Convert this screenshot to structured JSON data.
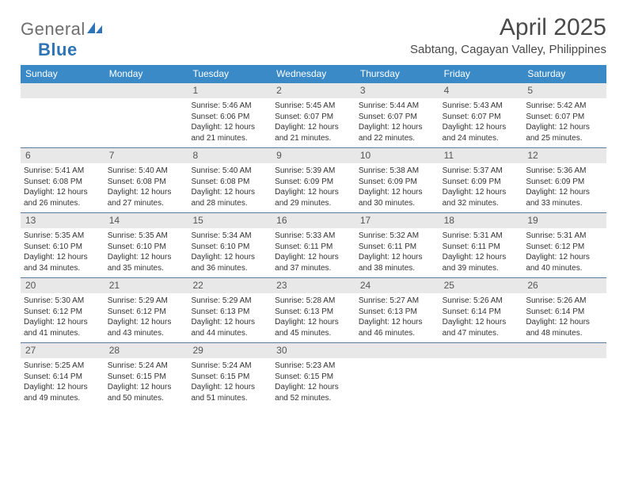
{
  "logo": {
    "word1": "General",
    "word2": "Blue"
  },
  "title": "April 2025",
  "subtitle": "Sabtang, Cagayan Valley, Philippines",
  "header_bg": "#3a8ac8",
  "daynum_bg": "#e8e8e8",
  "row_border": "#5a7a9a",
  "text_color": "#333333",
  "dayNames": [
    "Sunday",
    "Monday",
    "Tuesday",
    "Wednesday",
    "Thursday",
    "Friday",
    "Saturday"
  ],
  "weeks": [
    [
      {
        "n": "",
        "sunrise": "",
        "sunset": "",
        "daylight": ""
      },
      {
        "n": "",
        "sunrise": "",
        "sunset": "",
        "daylight": ""
      },
      {
        "n": "1",
        "sunrise": "Sunrise: 5:46 AM",
        "sunset": "Sunset: 6:06 PM",
        "daylight": "Daylight: 12 hours and 21 minutes."
      },
      {
        "n": "2",
        "sunrise": "Sunrise: 5:45 AM",
        "sunset": "Sunset: 6:07 PM",
        "daylight": "Daylight: 12 hours and 21 minutes."
      },
      {
        "n": "3",
        "sunrise": "Sunrise: 5:44 AM",
        "sunset": "Sunset: 6:07 PM",
        "daylight": "Daylight: 12 hours and 22 minutes."
      },
      {
        "n": "4",
        "sunrise": "Sunrise: 5:43 AM",
        "sunset": "Sunset: 6:07 PM",
        "daylight": "Daylight: 12 hours and 24 minutes."
      },
      {
        "n": "5",
        "sunrise": "Sunrise: 5:42 AM",
        "sunset": "Sunset: 6:07 PM",
        "daylight": "Daylight: 12 hours and 25 minutes."
      }
    ],
    [
      {
        "n": "6",
        "sunrise": "Sunrise: 5:41 AM",
        "sunset": "Sunset: 6:08 PM",
        "daylight": "Daylight: 12 hours and 26 minutes."
      },
      {
        "n": "7",
        "sunrise": "Sunrise: 5:40 AM",
        "sunset": "Sunset: 6:08 PM",
        "daylight": "Daylight: 12 hours and 27 minutes."
      },
      {
        "n": "8",
        "sunrise": "Sunrise: 5:40 AM",
        "sunset": "Sunset: 6:08 PM",
        "daylight": "Daylight: 12 hours and 28 minutes."
      },
      {
        "n": "9",
        "sunrise": "Sunrise: 5:39 AM",
        "sunset": "Sunset: 6:09 PM",
        "daylight": "Daylight: 12 hours and 29 minutes."
      },
      {
        "n": "10",
        "sunrise": "Sunrise: 5:38 AM",
        "sunset": "Sunset: 6:09 PM",
        "daylight": "Daylight: 12 hours and 30 minutes."
      },
      {
        "n": "11",
        "sunrise": "Sunrise: 5:37 AM",
        "sunset": "Sunset: 6:09 PM",
        "daylight": "Daylight: 12 hours and 32 minutes."
      },
      {
        "n": "12",
        "sunrise": "Sunrise: 5:36 AM",
        "sunset": "Sunset: 6:09 PM",
        "daylight": "Daylight: 12 hours and 33 minutes."
      }
    ],
    [
      {
        "n": "13",
        "sunrise": "Sunrise: 5:35 AM",
        "sunset": "Sunset: 6:10 PM",
        "daylight": "Daylight: 12 hours and 34 minutes."
      },
      {
        "n": "14",
        "sunrise": "Sunrise: 5:35 AM",
        "sunset": "Sunset: 6:10 PM",
        "daylight": "Daylight: 12 hours and 35 minutes."
      },
      {
        "n": "15",
        "sunrise": "Sunrise: 5:34 AM",
        "sunset": "Sunset: 6:10 PM",
        "daylight": "Daylight: 12 hours and 36 minutes."
      },
      {
        "n": "16",
        "sunrise": "Sunrise: 5:33 AM",
        "sunset": "Sunset: 6:11 PM",
        "daylight": "Daylight: 12 hours and 37 minutes."
      },
      {
        "n": "17",
        "sunrise": "Sunrise: 5:32 AM",
        "sunset": "Sunset: 6:11 PM",
        "daylight": "Daylight: 12 hours and 38 minutes."
      },
      {
        "n": "18",
        "sunrise": "Sunrise: 5:31 AM",
        "sunset": "Sunset: 6:11 PM",
        "daylight": "Daylight: 12 hours and 39 minutes."
      },
      {
        "n": "19",
        "sunrise": "Sunrise: 5:31 AM",
        "sunset": "Sunset: 6:12 PM",
        "daylight": "Daylight: 12 hours and 40 minutes."
      }
    ],
    [
      {
        "n": "20",
        "sunrise": "Sunrise: 5:30 AM",
        "sunset": "Sunset: 6:12 PM",
        "daylight": "Daylight: 12 hours and 41 minutes."
      },
      {
        "n": "21",
        "sunrise": "Sunrise: 5:29 AM",
        "sunset": "Sunset: 6:12 PM",
        "daylight": "Daylight: 12 hours and 43 minutes."
      },
      {
        "n": "22",
        "sunrise": "Sunrise: 5:29 AM",
        "sunset": "Sunset: 6:13 PM",
        "daylight": "Daylight: 12 hours and 44 minutes."
      },
      {
        "n": "23",
        "sunrise": "Sunrise: 5:28 AM",
        "sunset": "Sunset: 6:13 PM",
        "daylight": "Daylight: 12 hours and 45 minutes."
      },
      {
        "n": "24",
        "sunrise": "Sunrise: 5:27 AM",
        "sunset": "Sunset: 6:13 PM",
        "daylight": "Daylight: 12 hours and 46 minutes."
      },
      {
        "n": "25",
        "sunrise": "Sunrise: 5:26 AM",
        "sunset": "Sunset: 6:14 PM",
        "daylight": "Daylight: 12 hours and 47 minutes."
      },
      {
        "n": "26",
        "sunrise": "Sunrise: 5:26 AM",
        "sunset": "Sunset: 6:14 PM",
        "daylight": "Daylight: 12 hours and 48 minutes."
      }
    ],
    [
      {
        "n": "27",
        "sunrise": "Sunrise: 5:25 AM",
        "sunset": "Sunset: 6:14 PM",
        "daylight": "Daylight: 12 hours and 49 minutes."
      },
      {
        "n": "28",
        "sunrise": "Sunrise: 5:24 AM",
        "sunset": "Sunset: 6:15 PM",
        "daylight": "Daylight: 12 hours and 50 minutes."
      },
      {
        "n": "29",
        "sunrise": "Sunrise: 5:24 AM",
        "sunset": "Sunset: 6:15 PM",
        "daylight": "Daylight: 12 hours and 51 minutes."
      },
      {
        "n": "30",
        "sunrise": "Sunrise: 5:23 AM",
        "sunset": "Sunset: 6:15 PM",
        "daylight": "Daylight: 12 hours and 52 minutes."
      },
      {
        "n": "",
        "sunrise": "",
        "sunset": "",
        "daylight": ""
      },
      {
        "n": "",
        "sunrise": "",
        "sunset": "",
        "daylight": ""
      },
      {
        "n": "",
        "sunrise": "",
        "sunset": "",
        "daylight": ""
      }
    ]
  ]
}
